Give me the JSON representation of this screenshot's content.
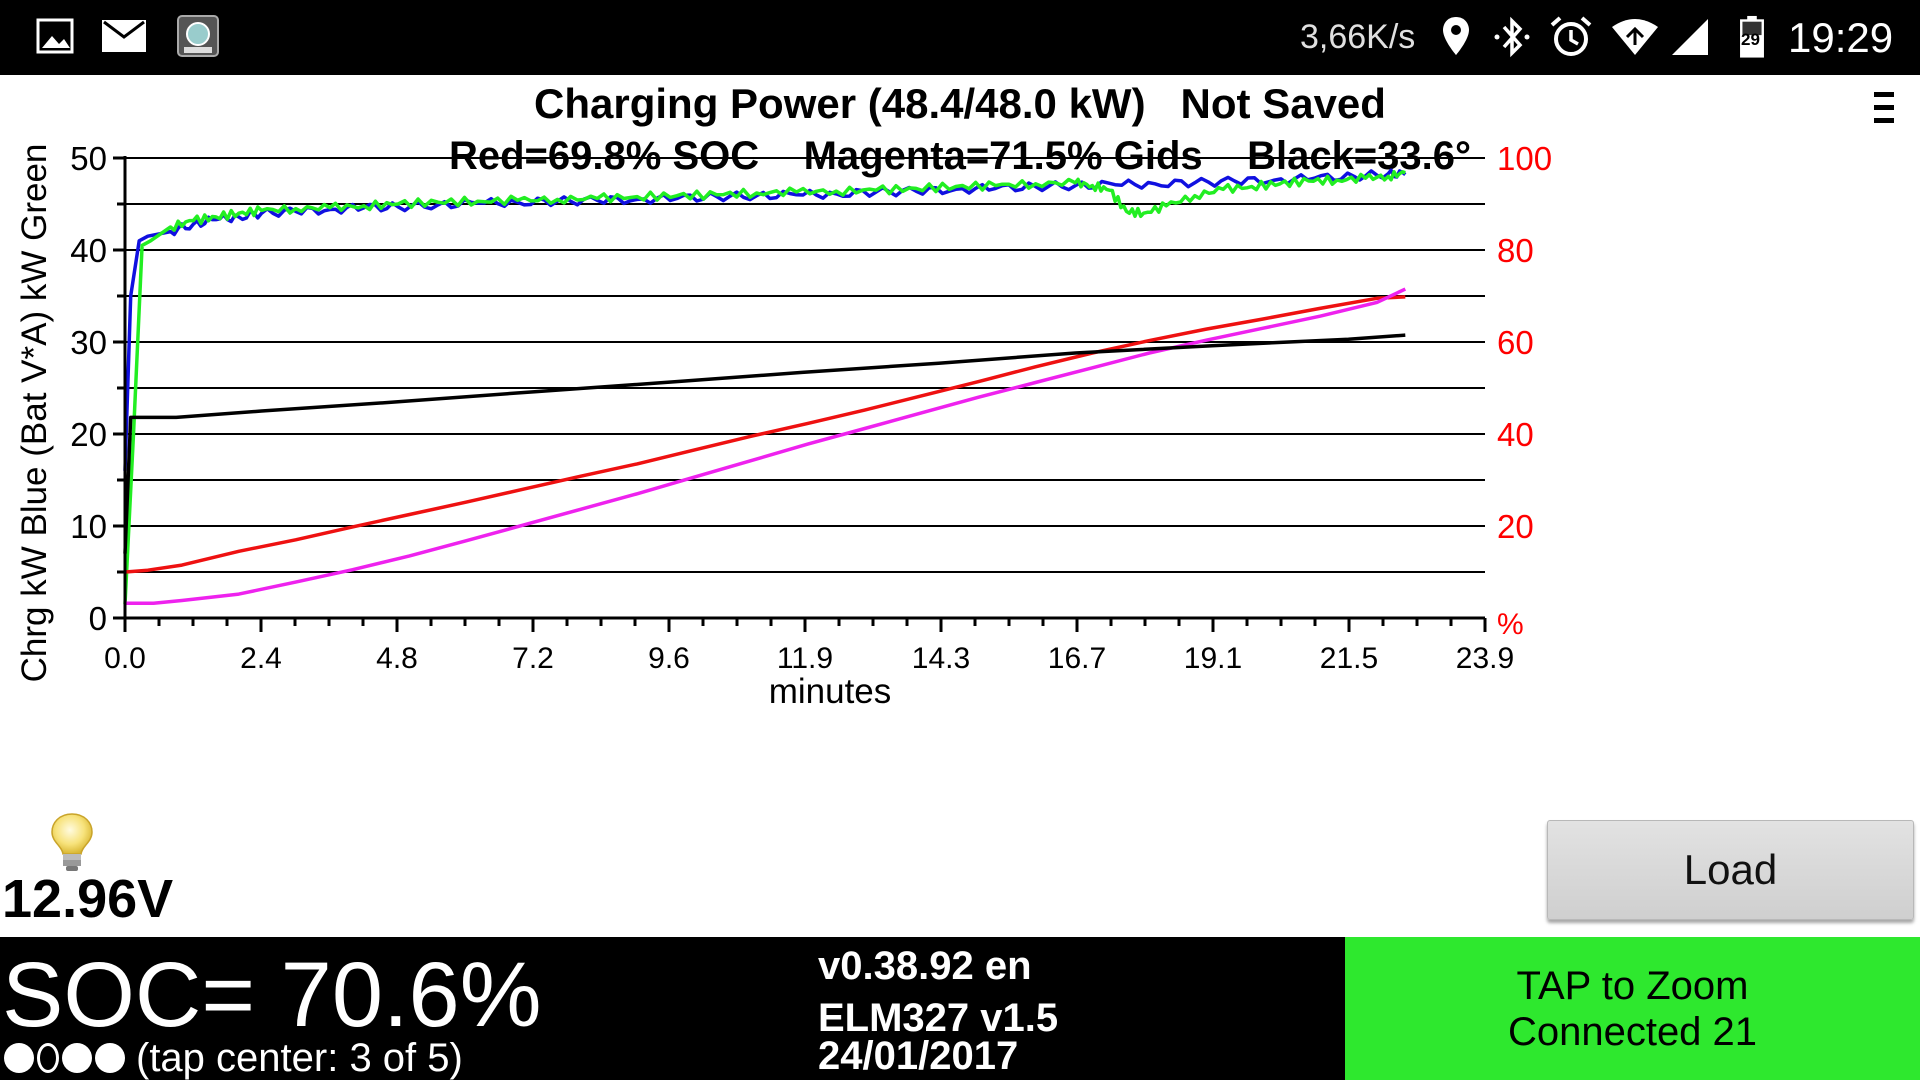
{
  "status_bar": {
    "left_icons": [
      "image-icon",
      "mail-icon",
      "app-leaf-icon"
    ],
    "net_speed": "3,66K/s",
    "right_icons": [
      "location-icon",
      "bluetooth-icon",
      "alarm-icon",
      "wifi-icon",
      "signal-icon",
      "battery-icon"
    ],
    "battery_level": "29",
    "clock": "19:29"
  },
  "header": {
    "title": "Charging Power (48.4/48.0 kW)   Not Saved",
    "subtitle": "Red=69.8% SOC    Magenta=71.5% Gids    Black=33.6°",
    "menu_icon": "menu-icon"
  },
  "chart_data": {
    "type": "line",
    "xlabel": "minutes",
    "ylabel_left": "Chrg kW Blue  (Bat V*A) kW Green",
    "ylabel_right": "%",
    "x_ticks": [
      "0.0",
      "2.4",
      "4.8",
      "7.2",
      "9.6",
      "11.9",
      "14.3",
      "16.7",
      "19.1",
      "21.5",
      "23.9"
    ],
    "xlim": [
      0,
      23.9
    ],
    "y_left_ticks": [
      "0",
      "10",
      "20",
      "30",
      "40",
      "50"
    ],
    "ylim_left": [
      0,
      50
    ],
    "y_right_ticks": [
      "20",
      "40",
      "60",
      "80",
      "100"
    ],
    "ylim_right": [
      0,
      100
    ],
    "grid": true,
    "colors": {
      "blue": "#1010e0",
      "green": "#22ee22",
      "red": "#ee1111",
      "magenta": "#ee22ee",
      "black": "#000000",
      "right_axis": "#ff0000"
    },
    "series": [
      {
        "color": "blue",
        "axis": "left",
        "x": [
          0.0,
          0.1,
          0.25,
          0.4,
          0.8,
          1.2,
          1.6,
          2.0,
          2.4,
          3.0,
          3.6,
          4.2,
          4.8,
          5.5,
          6.2,
          6.9,
          7.6,
          8.3,
          9.0,
          9.7,
          10.4,
          11.1,
          11.8,
          12.5,
          13.2,
          13.9,
          14.6,
          15.3,
          16.0,
          16.7,
          17.4,
          18.1,
          18.8,
          19.5,
          20.2,
          20.9,
          21.6,
          22.2,
          22.5
        ],
        "values": [
          16.0,
          35.0,
          41.0,
          41.5,
          42.0,
          42.8,
          43.3,
          43.6,
          44.0,
          44.2,
          44.4,
          44.6,
          44.7,
          44.9,
          45.1,
          45.2,
          45.3,
          45.4,
          45.5,
          45.6,
          45.8,
          45.9,
          46.0,
          46.1,
          46.3,
          46.4,
          46.6,
          46.7,
          46.9,
          47.0,
          47.1,
          47.2,
          47.3,
          47.5,
          47.6,
          47.8,
          48.0,
          48.3,
          48.2
        ]
      },
      {
        "color": "green",
        "axis": "left",
        "x": [
          0.0,
          0.15,
          0.3,
          0.45,
          0.8,
          1.2,
          1.6,
          2.0,
          2.4,
          3.0,
          3.6,
          4.2,
          4.8,
          5.5,
          6.2,
          6.9,
          7.6,
          8.3,
          9.0,
          9.7,
          10.4,
          11.1,
          11.8,
          12.5,
          13.2,
          13.9,
          14.6,
          15.3,
          16.0,
          16.7,
          17.0,
          17.3,
          17.6,
          17.9,
          18.3,
          18.8,
          19.3,
          19.8,
          20.3,
          20.8,
          21.3,
          21.8,
          22.2,
          22.5
        ],
        "values": [
          1.5,
          20.0,
          40.5,
          41.0,
          42.5,
          43.2,
          43.6,
          44.0,
          44.3,
          44.5,
          44.6,
          44.8,
          45.0,
          45.2,
          45.3,
          45.4,
          45.5,
          45.6,
          45.8,
          45.9,
          46.0,
          46.2,
          46.3,
          46.4,
          46.5,
          46.7,
          46.9,
          47.0,
          47.2,
          47.3,
          47.0,
          46.5,
          44.2,
          44.0,
          44.8,
          45.9,
          46.6,
          46.9,
          47.2,
          47.5,
          47.6,
          47.8,
          48.0,
          48.4
        ]
      },
      {
        "color": "red",
        "axis": "right",
        "x": [
          0.0,
          0.4,
          1.0,
          2.0,
          3.0,
          4.0,
          5.0,
          6.0,
          7.0,
          8.0,
          9.0,
          10.0,
          11.0,
          12.0,
          13.0,
          14.0,
          15.0,
          16.0,
          17.0,
          18.0,
          19.0,
          20.0,
          21.0,
          22.0,
          22.5
        ],
        "values": [
          10.0,
          10.4,
          11.5,
          14.5,
          17.0,
          19.8,
          22.5,
          25.2,
          28.0,
          30.8,
          33.5,
          36.5,
          39.5,
          42.3,
          45.2,
          48.3,
          51.4,
          54.6,
          57.6,
          60.3,
          62.8,
          65.0,
          67.3,
          69.5,
          69.8
        ]
      },
      {
        "color": "magenta",
        "axis": "right",
        "x": [
          0.0,
          0.5,
          1.0,
          2.0,
          3.0,
          4.0,
          5.0,
          6.0,
          7.0,
          8.0,
          9.0,
          10.0,
          11.0,
          12.0,
          13.0,
          14.0,
          15.0,
          16.0,
          17.0,
          18.0,
          19.0,
          20.0,
          21.0,
          22.0,
          22.5
        ],
        "values": [
          3.2,
          3.2,
          3.8,
          5.2,
          7.8,
          10.5,
          13.5,
          16.8,
          20.2,
          23.6,
          27.0,
          30.6,
          34.2,
          37.8,
          41.2,
          44.6,
          48.0,
          51.2,
          54.4,
          57.6,
          60.4,
          63.0,
          65.6,
          68.6,
          71.5
        ]
      },
      {
        "color": "black",
        "axis": "right",
        "x": [
          0.0,
          0.1,
          0.9,
          2.4,
          4.8,
          7.2,
          9.6,
          11.9,
          14.3,
          16.7,
          19.1,
          21.5,
          22.5
        ],
        "values": [
          14.0,
          43.6,
          43.6,
          45.0,
          47.0,
          49.2,
          51.3,
          53.4,
          55.4,
          57.6,
          59.2,
          60.6,
          61.5
        ]
      }
    ]
  },
  "left_panel": {
    "bulb_icon": "lightbulb-icon",
    "voltage": "12.96V"
  },
  "load_button": {
    "label": "Load"
  },
  "bottom_bar": {
    "soc": "SOC= 70.6%",
    "dots": [
      "filled",
      "hollow",
      "filled",
      "filled"
    ],
    "tap_center": "(tap center: 3 of 5)",
    "version": "v0.38.92 en",
    "adapter": "ELM327 v1.5",
    "date": "24/01/2017",
    "zoom_line": "TAP to Zoom",
    "connected_line": "Connected 21",
    "panel_color": "#2ee82e"
  }
}
